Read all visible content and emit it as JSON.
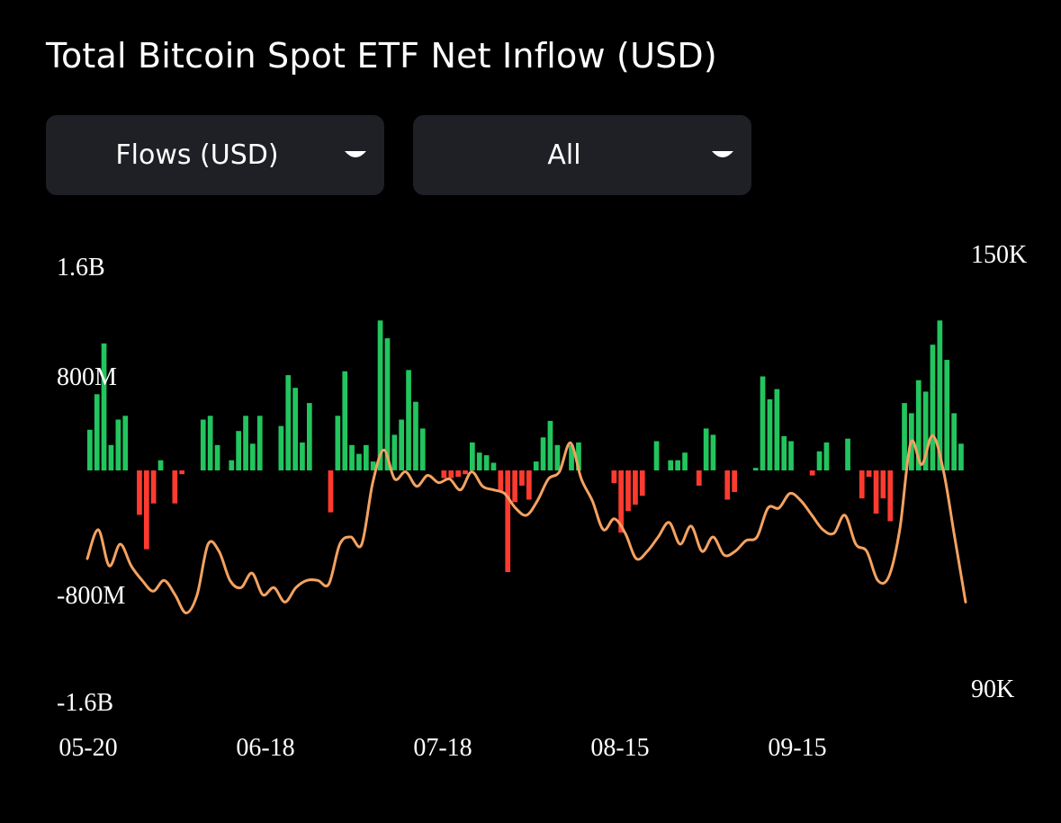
{
  "title": "Total Bitcoin Spot ETF Net Inflow (USD)",
  "controls": {
    "metric_select": {
      "value": "Flows (USD)",
      "icon": "caret-down-icon"
    },
    "range_select": {
      "value": "All",
      "icon": "caret-down-icon"
    }
  },
  "colors": {
    "background": "#000000",
    "inflow": "#22c55e",
    "outflow": "#ff3b30",
    "price_line": "#f4a261",
    "control_bg": "#1e2026"
  },
  "chart_data": {
    "type": "bar",
    "title": "Total Bitcoin Spot ETF Net Inflow (USD)",
    "x_tick_labels": [
      "05-20",
      "06-18",
      "07-18",
      "08-15",
      "09-15"
    ],
    "y_left_ticks": [
      "1.6B",
      "800M",
      "-800M",
      "-1.6B"
    ],
    "y_left_range": [
      -1600,
      1600
    ],
    "y_left_unit": "M USD",
    "y_right_ticks": [
      "150K",
      "90K"
    ],
    "y_right_range": [
      90000,
      150000
    ],
    "grid": false,
    "series": [
      {
        "kind": "bar",
        "values": [
          320,
          600,
          1000,
          200,
          400,
          430,
          0,
          -350,
          -620,
          -260,
          80,
          0,
          -260,
          -30,
          0,
          0,
          400,
          430,
          200,
          0,
          80,
          310,
          430,
          210,
          430,
          0,
          0,
          350,
          750,
          650,
          220,
          530,
          0,
          0,
          -330,
          430,
          780,
          200,
          130,
          200,
          70,
          1180,
          1040,
          280,
          400,
          790,
          540,
          330,
          0,
          0,
          -60,
          -60,
          -50,
          -30,
          220,
          140,
          120,
          60,
          -160,
          -800,
          -250,
          -120,
          -230,
          70,
          260,
          390,
          200,
          0,
          200,
          220,
          0,
          0,
          0,
          0,
          -100,
          -490,
          -320,
          -270,
          -200,
          0,
          230,
          0,
          80,
          80,
          140,
          0,
          -120,
          330,
          280,
          0,
          -230,
          -170,
          0,
          0,
          20,
          740,
          560,
          640,
          270,
          230,
          0,
          0,
          -40,
          150,
          220,
          0,
          0,
          250,
          0,
          -220,
          -50,
          -340,
          -220,
          -400,
          0,
          530,
          450,
          710,
          620,
          990,
          1180,
          870,
          450,
          210
        ]
      },
      {
        "kind": "line",
        "right_axis": true,
        "values": [
          108000,
          112000,
          107000,
          110000,
          107000,
          105000,
          103500,
          105000,
          103000,
          100500,
          103000,
          110000,
          109000,
          105000,
          104000,
          106000,
          103000,
          104000,
          102000,
          104000,
          105000,
          105000,
          104500,
          110000,
          111000,
          110000,
          118500,
          123000,
          119000,
          120000,
          118000,
          119500,
          118500,
          119000,
          117500,
          120000,
          118000,
          117500,
          117000,
          115000,
          114000,
          116000,
          119000,
          120000,
          124000,
          119000,
          116000,
          112000,
          113500,
          111500,
          108000,
          109000,
          111000,
          113000,
          110000,
          112500,
          109000,
          111000,
          108500,
          109000,
          110500,
          111000,
          115000,
          115000,
          117000,
          116000,
          114000,
          112000,
          111500,
          114000,
          110000,
          109000,
          105000,
          105500,
          112000,
          124000,
          121000,
          125000,
          120000,
          111000,
          102000
        ]
      }
    ]
  }
}
